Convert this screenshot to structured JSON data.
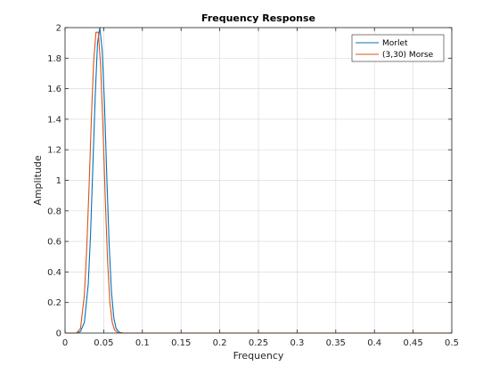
{
  "chart_data": {
    "type": "line",
    "title": "Frequency Response",
    "xlabel": "Frequency",
    "ylabel": "Amplitude",
    "xlim": [
      0,
      0.5
    ],
    "ylim": [
      0,
      2
    ],
    "xticks": [
      0,
      0.05,
      0.1,
      0.15,
      0.2,
      0.25,
      0.3,
      0.35,
      0.4,
      0.45,
      0.5
    ],
    "xtick_labels": [
      "0",
      "0.05",
      "0.1",
      "0.15",
      "0.2",
      "0.25",
      "0.3",
      "0.35",
      "0.4",
      "0.45",
      "0.5"
    ],
    "yticks": [
      0,
      0.2,
      0.4,
      0.6,
      0.8,
      1,
      1.2,
      1.4,
      1.6,
      1.8,
      2
    ],
    "ytick_labels": [
      "0",
      "0.2",
      "0.4",
      "0.6",
      "0.8",
      "1",
      "1.2",
      "1.4",
      "1.6",
      "1.8",
      "2"
    ],
    "grid": true,
    "legend_position": "top-right",
    "series": [
      {
        "name": "Morlet",
        "color": "#0072BD",
        "x": [
          0,
          0.015,
          0.02,
          0.025,
          0.03,
          0.033,
          0.036,
          0.039,
          0.042,
          0.045,
          0.048,
          0.051,
          0.054,
          0.057,
          0.06,
          0.063,
          0.066,
          0.07,
          0.075,
          0.08,
          0.5
        ],
        "y": [
          0,
          0,
          0.01,
          0.07,
          0.32,
          0.65,
          1.1,
          1.55,
          1.9,
          2.0,
          1.85,
          1.5,
          1.02,
          0.58,
          0.27,
          0.1,
          0.03,
          0.005,
          0,
          0,
          0
        ]
      },
      {
        "name": "(3,30) Morse",
        "color": "#D95319",
        "x": [
          0,
          0.015,
          0.02,
          0.025,
          0.028,
          0.031,
          0.034,
          0.037,
          0.04,
          0.043,
          0.046,
          0.049,
          0.052,
          0.055,
          0.058,
          0.061,
          0.064,
          0.068,
          0.075,
          0.5
        ],
        "y": [
          0,
          0,
          0.03,
          0.25,
          0.55,
          0.95,
          1.4,
          1.78,
          1.97,
          1.97,
          1.75,
          1.35,
          0.88,
          0.47,
          0.2,
          0.07,
          0.02,
          0.003,
          0,
          0
        ]
      }
    ]
  }
}
